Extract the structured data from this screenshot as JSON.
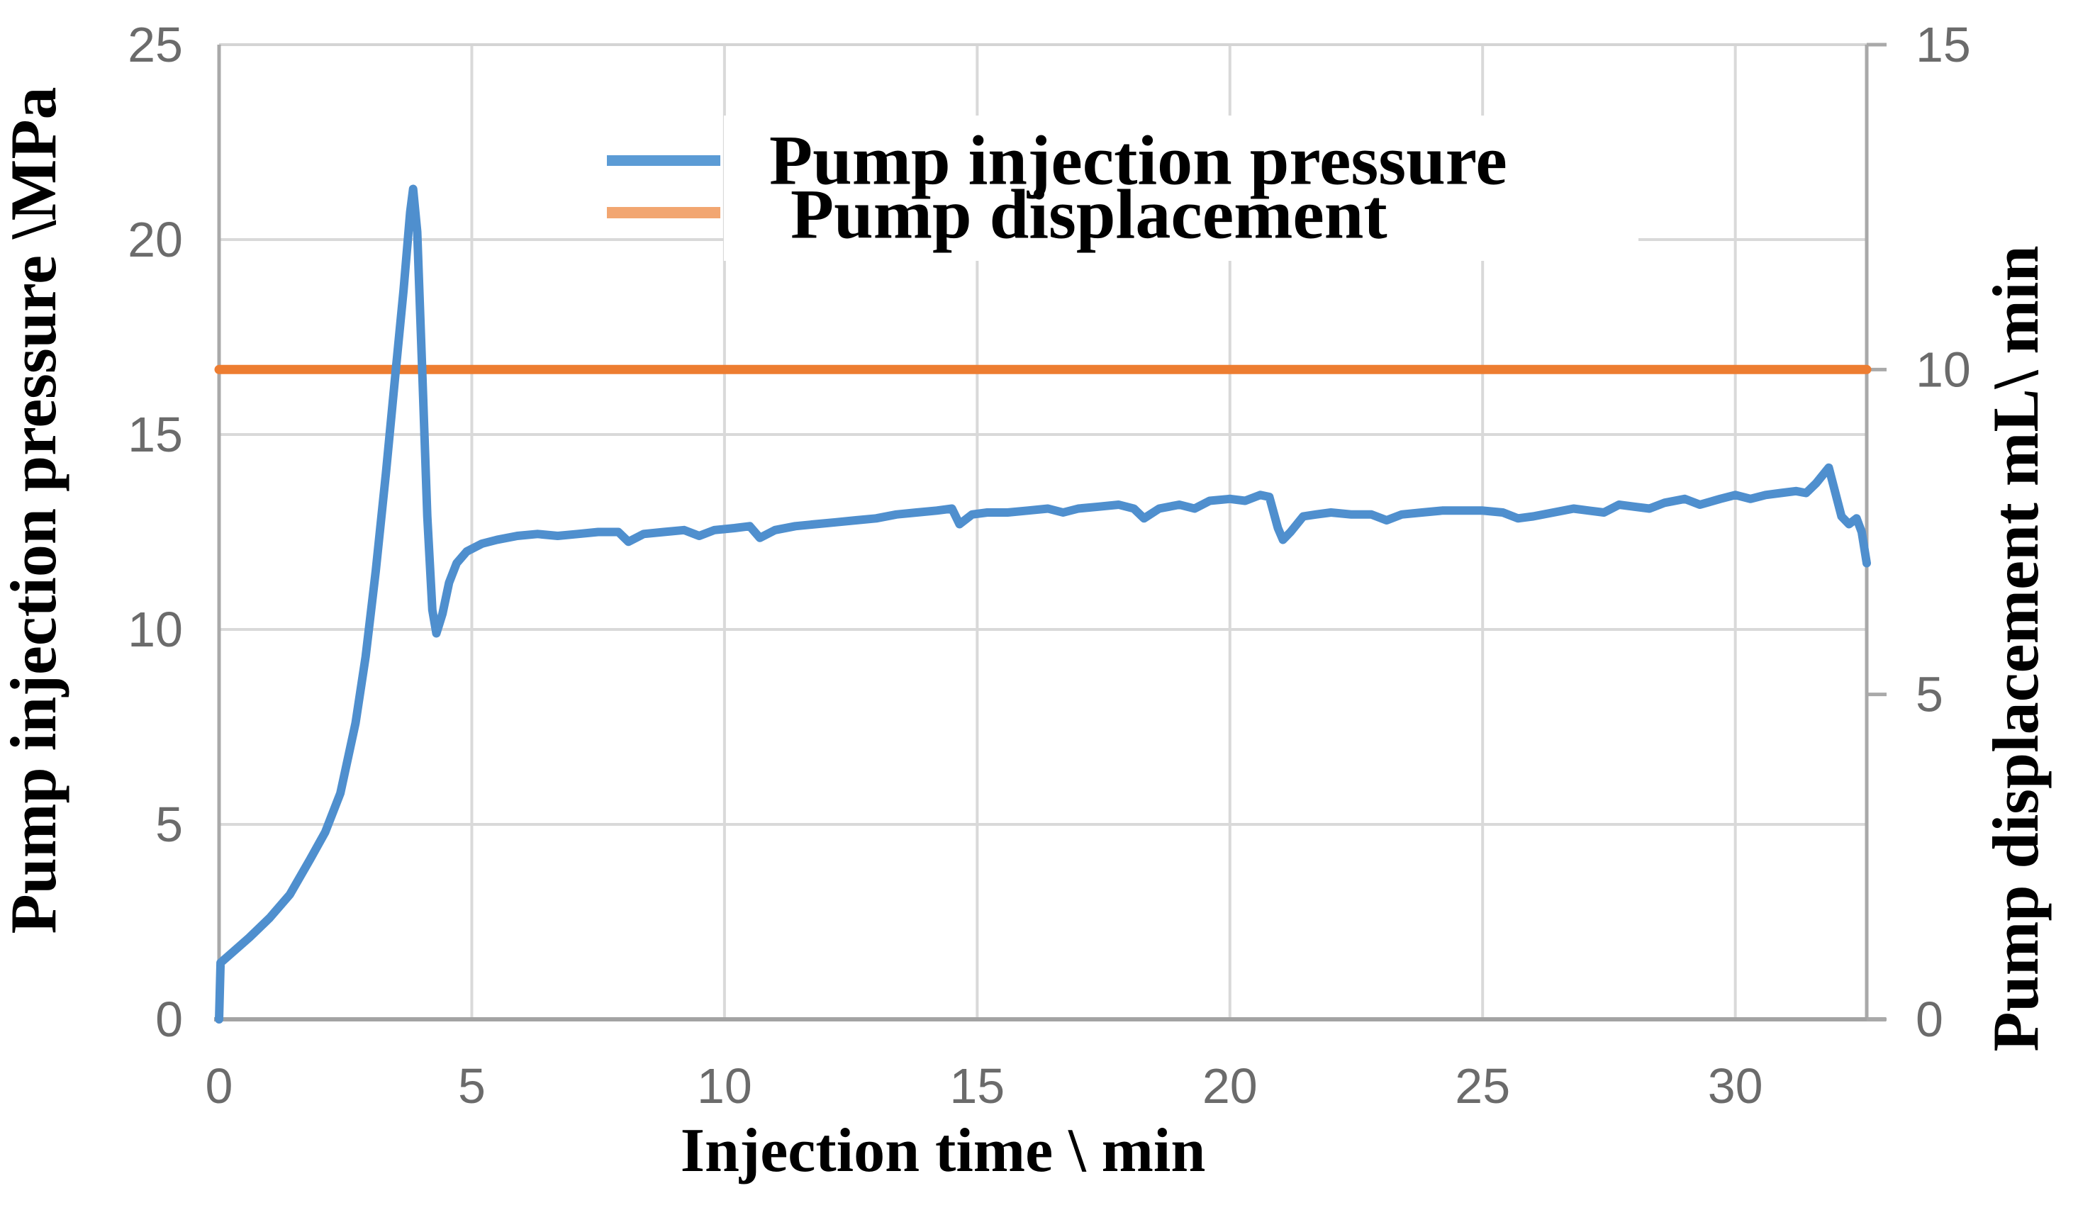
{
  "chart_data": {
    "type": "line",
    "title": "",
    "xlabel": "Injection time \\ min",
    "ylabel_left": "Pump injection pressure \\MPa",
    "ylabel_right": "Pump displacement  mL\\ min",
    "xlim": [
      0,
      32.6
    ],
    "ylim_left": [
      0,
      25
    ],
    "ylim_right": [
      0,
      15
    ],
    "xticks": [
      0,
      5,
      10,
      15,
      20,
      25,
      30
    ],
    "yticks_left": [
      0,
      5,
      10,
      15,
      20,
      25
    ],
    "yticks_right": [
      0,
      5,
      10,
      15
    ],
    "grid": true,
    "legend_position": "upper center inside plot",
    "legend": [
      "Pump injection pressure",
      "Pump displacement"
    ],
    "series": [
      {
        "name": "Pump injection pressure",
        "axis": "left",
        "color": "#4F8FCE",
        "legend_color": "#5B9BD5",
        "line_width": 12,
        "points": [
          [
            0,
            0
          ],
          [
            0.03,
            1.45
          ],
          [
            0.25,
            1.7
          ],
          [
            0.6,
            2.1
          ],
          [
            1.0,
            2.6
          ],
          [
            1.4,
            3.2
          ],
          [
            1.8,
            4.1
          ],
          [
            2.1,
            4.8
          ],
          [
            2.4,
            5.8
          ],
          [
            2.7,
            7.6
          ],
          [
            2.9,
            9.3
          ],
          [
            3.1,
            11.5
          ],
          [
            3.3,
            14.0
          ],
          [
            3.5,
            16.7
          ],
          [
            3.65,
            18.7
          ],
          [
            3.78,
            20.7
          ],
          [
            3.84,
            21.3
          ],
          [
            3.92,
            20.2
          ],
          [
            4.02,
            16.6
          ],
          [
            4.12,
            12.9
          ],
          [
            4.22,
            10.5
          ],
          [
            4.3,
            9.9
          ],
          [
            4.42,
            10.4
          ],
          [
            4.55,
            11.2
          ],
          [
            4.7,
            11.7
          ],
          [
            4.9,
            12.0
          ],
          [
            5.2,
            12.2
          ],
          [
            5.5,
            12.3
          ],
          [
            5.9,
            12.4
          ],
          [
            6.3,
            12.45
          ],
          [
            6.7,
            12.4
          ],
          [
            7.1,
            12.45
          ],
          [
            7.5,
            12.5
          ],
          [
            7.9,
            12.5
          ],
          [
            8.1,
            12.25
          ],
          [
            8.4,
            12.45
          ],
          [
            8.8,
            12.5
          ],
          [
            9.2,
            12.55
          ],
          [
            9.5,
            12.4
          ],
          [
            9.8,
            12.55
          ],
          [
            10.2,
            12.6
          ],
          [
            10.5,
            12.65
          ],
          [
            10.7,
            12.35
          ],
          [
            11.0,
            12.55
          ],
          [
            11.4,
            12.65
          ],
          [
            11.8,
            12.7
          ],
          [
            12.2,
            12.75
          ],
          [
            12.6,
            12.8
          ],
          [
            13.0,
            12.85
          ],
          [
            13.4,
            12.95
          ],
          [
            13.8,
            13.0
          ],
          [
            14.2,
            13.05
          ],
          [
            14.5,
            13.1
          ],
          [
            14.65,
            12.7
          ],
          [
            14.9,
            12.95
          ],
          [
            15.2,
            13.0
          ],
          [
            15.6,
            13.0
          ],
          [
            16.0,
            13.05
          ],
          [
            16.4,
            13.1
          ],
          [
            16.7,
            13.0
          ],
          [
            17.0,
            13.1
          ],
          [
            17.4,
            13.15
          ],
          [
            17.8,
            13.2
          ],
          [
            18.1,
            13.1
          ],
          [
            18.3,
            12.85
          ],
          [
            18.6,
            13.1
          ],
          [
            19.0,
            13.2
          ],
          [
            19.3,
            13.1
          ],
          [
            19.6,
            13.3
          ],
          [
            20.0,
            13.35
          ],
          [
            20.3,
            13.3
          ],
          [
            20.6,
            13.45
          ],
          [
            20.78,
            13.4
          ],
          [
            20.95,
            12.6
          ],
          [
            21.05,
            12.3
          ],
          [
            21.2,
            12.5
          ],
          [
            21.45,
            12.9
          ],
          [
            21.7,
            12.95
          ],
          [
            22.0,
            13.0
          ],
          [
            22.4,
            12.95
          ],
          [
            22.8,
            12.95
          ],
          [
            23.1,
            12.8
          ],
          [
            23.4,
            12.95
          ],
          [
            23.8,
            13.0
          ],
          [
            24.2,
            13.05
          ],
          [
            24.6,
            13.05
          ],
          [
            25.0,
            13.05
          ],
          [
            25.4,
            13.0
          ],
          [
            25.7,
            12.85
          ],
          [
            26.0,
            12.9
          ],
          [
            26.4,
            13.0
          ],
          [
            26.8,
            13.1
          ],
          [
            27.1,
            13.05
          ],
          [
            27.4,
            13.0
          ],
          [
            27.7,
            13.2
          ],
          [
            28.0,
            13.15
          ],
          [
            28.3,
            13.1
          ],
          [
            28.6,
            13.25
          ],
          [
            29.0,
            13.35
          ],
          [
            29.3,
            13.2
          ],
          [
            29.7,
            13.35
          ],
          [
            30.0,
            13.45
          ],
          [
            30.3,
            13.35
          ],
          [
            30.6,
            13.45
          ],
          [
            30.9,
            13.5
          ],
          [
            31.2,
            13.55
          ],
          [
            31.4,
            13.5
          ],
          [
            31.6,
            13.75
          ],
          [
            31.85,
            14.15
          ],
          [
            32.1,
            12.9
          ],
          [
            32.25,
            12.7
          ],
          [
            32.4,
            12.85
          ],
          [
            32.5,
            12.5
          ],
          [
            32.6,
            11.7
          ]
        ]
      },
      {
        "name": "Pump displacement",
        "axis": "right",
        "color": "#ED7D31",
        "legend_color": "#F2A671",
        "line_width": 13,
        "constant_value": 10,
        "points": [
          [
            0,
            10
          ],
          [
            32.6,
            10
          ]
        ]
      }
    ]
  },
  "colors": {
    "gridline": "#D9D9D9",
    "axis_line": "#A9A9A9",
    "tick_text": "#6B6B6B",
    "background": "#FFFFFF",
    "blue_line": "#4F8FCE",
    "orange_line": "#ED7D31"
  }
}
